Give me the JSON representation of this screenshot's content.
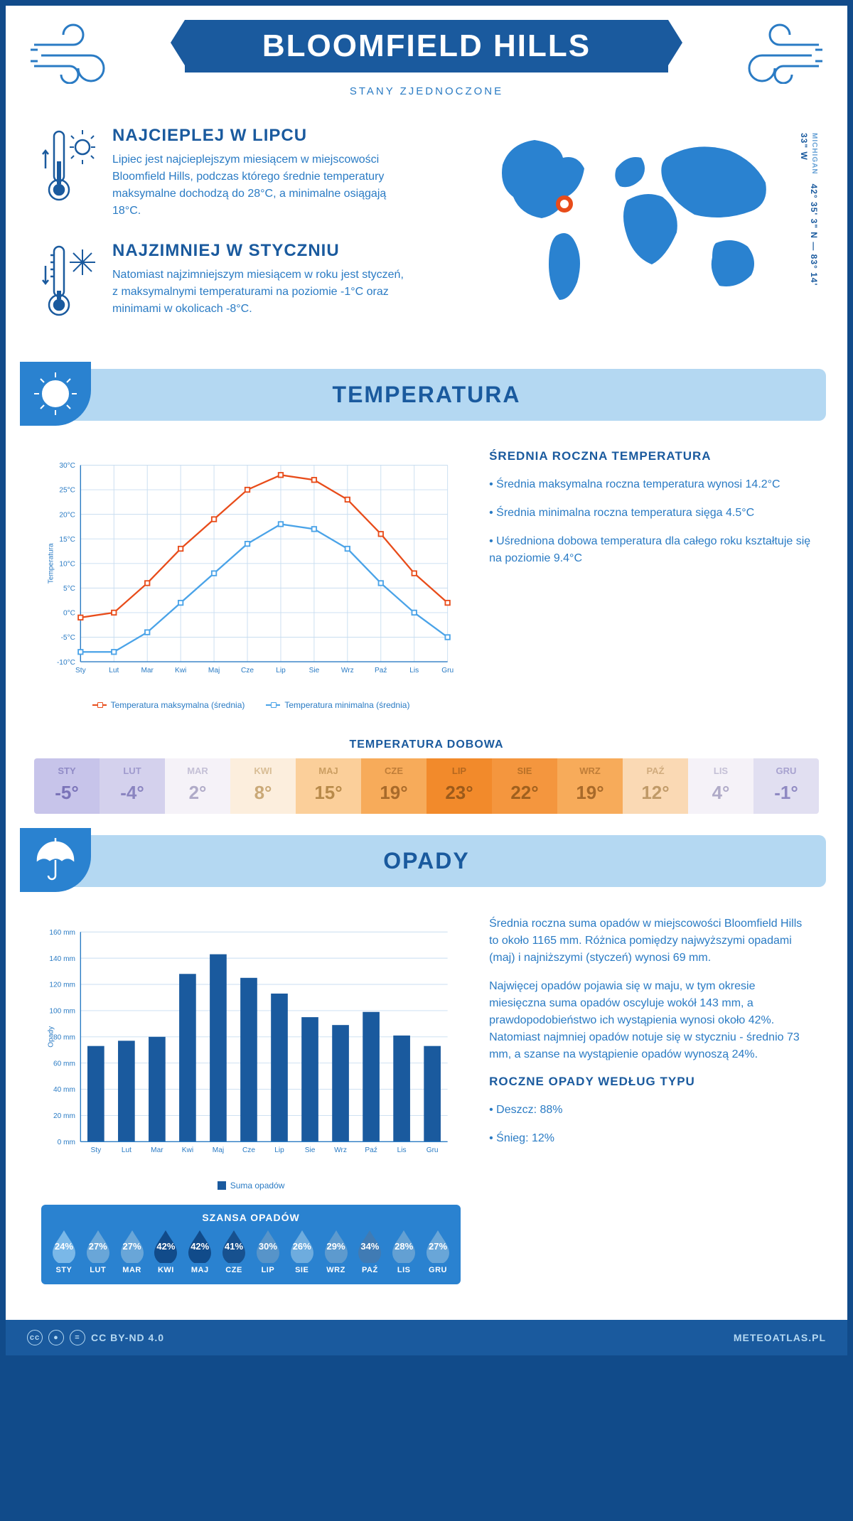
{
  "header": {
    "title": "BLOOMFIELD HILLS",
    "subtitle": "STANY ZJEDNOCZONE"
  },
  "coords": {
    "lat": "42° 35' 3\" N",
    "sep": "—",
    "lon": "83° 14' 33\" W",
    "state": "MICHIGAN"
  },
  "intro": {
    "hot": {
      "heading": "NAJCIEPLEJ W LIPCU",
      "body": "Lipiec jest najcieplejszym miesiącem w miejscowości Bloomfield Hills, podczas którego średnie temperatury maksymalne dochodzą do 28°C, a minimalne osiągają 18°C."
    },
    "cold": {
      "heading": "NAJZIMNIEJ W STYCZNIU",
      "body": "Natomiast najzimniejszym miesiącem w roku jest styczeń, z maksymalnymi temperaturami na poziomie -1°C oraz minimami w okolicach -8°C."
    }
  },
  "sections": {
    "temp": "TEMPERATURA",
    "rain": "OPADY"
  },
  "temp_chart": {
    "ylabel": "Temperatura",
    "months": [
      "Sty",
      "Lut",
      "Mar",
      "Kwi",
      "Maj",
      "Cze",
      "Lip",
      "Sie",
      "Wrz",
      "Paź",
      "Lis",
      "Gru"
    ],
    "max_series": {
      "values": [
        -1,
        0,
        6,
        13,
        19,
        25,
        28,
        27,
        23,
        16,
        8,
        2
      ],
      "color": "#e84c1a",
      "label": "Temperatura maksymalna (średnia)"
    },
    "min_series": {
      "values": [
        -8,
        -8,
        -4,
        2,
        8,
        14,
        18,
        17,
        13,
        6,
        0,
        -5
      ],
      "color": "#4aa3e8",
      "label": "Temperatura minimalna (średnia)"
    },
    "ylim": [
      -10,
      30
    ],
    "ystep": 5,
    "grid_color": "#c8ddf0"
  },
  "temp_side": {
    "heading": "ŚREDNIA ROCZNA TEMPERATURA",
    "bullets": [
      "Średnia maksymalna roczna temperatura wynosi 14.2°C",
      "Średnia minimalna roczna temperatura sięga 4.5°C",
      "Uśredniona dobowa temperatura dla całego roku kształtuje się na poziomie 9.4°C"
    ]
  },
  "daily": {
    "title": "TEMPERATURA DOBOWA",
    "months": [
      "STY",
      "LUT",
      "MAR",
      "KWI",
      "MAJ",
      "CZE",
      "LIP",
      "SIE",
      "WRZ",
      "PAŹ",
      "LIS",
      "GRU"
    ],
    "values": [
      "-5°",
      "-4°",
      "2°",
      "8°",
      "15°",
      "19°",
      "23°",
      "22°",
      "19°",
      "12°",
      "4°",
      "-1°"
    ],
    "bg": [
      "#c7c4ea",
      "#d4d1ed",
      "#f5f2f8",
      "#fceedd",
      "#fbcf9a",
      "#f7ab5a",
      "#f28a2b",
      "#f4963e",
      "#f7ab5a",
      "#fad9b4",
      "#f5f2f8",
      "#e1dff1"
    ],
    "fg": [
      "#7a73b8",
      "#8a84c0",
      "#b0abc8",
      "#caa978",
      "#b88a4a",
      "#a86a2a",
      "#9c5a1a",
      "#a0601e",
      "#a86a2a",
      "#c09a68",
      "#b0abc8",
      "#8f89c2"
    ]
  },
  "rain_chart": {
    "ylabel": "Opady",
    "legend": "Suma opadów",
    "months": [
      "Sty",
      "Lut",
      "Mar",
      "Kwi",
      "Maj",
      "Cze",
      "Lip",
      "Sie",
      "Wrz",
      "Paź",
      "Lis",
      "Gru"
    ],
    "values": [
      73,
      77,
      80,
      128,
      143,
      125,
      113,
      95,
      89,
      99,
      81,
      73
    ],
    "ylim": [
      0,
      160
    ],
    "ystep": 20,
    "bar_color": "#1a5a9e",
    "grid_color": "#c8ddf0"
  },
  "rain_side": {
    "p1": "Średnia roczna suma opadów w miejscowości Bloomfield Hills to około 1165 mm. Różnica pomiędzy najwyższymi opadami (maj) i najniższymi (styczeń) wynosi 69 mm.",
    "p2": "Najwięcej opadów pojawia się w maju, w tym okresie miesięczna suma opadów oscyluje wokół 143 mm, a prawdopodobieństwo ich wystąpienia wynosi około 42%. Natomiast najmniej opadów notuje się w styczniu - średnio 73 mm, a szanse na wystąpienie opadów wynoszą 24%.",
    "type_heading": "ROCZNE OPADY WEDŁUG TYPU",
    "types": [
      "Deszcz: 88%",
      "Śnieg: 12%"
    ]
  },
  "chance": {
    "title": "SZANSA OPADÓW",
    "months": [
      "STY",
      "LUT",
      "MAR",
      "KWI",
      "MAJ",
      "CZE",
      "LIP",
      "SIE",
      "WRZ",
      "PAŹ",
      "LIS",
      "GRU"
    ],
    "values": [
      "24%",
      "27%",
      "27%",
      "42%",
      "42%",
      "41%",
      "30%",
      "26%",
      "29%",
      "34%",
      "28%",
      "27%"
    ],
    "light_color": "#7ab8e8",
    "dark_color": "#114b8a"
  },
  "footer": {
    "license": "CC BY-ND 4.0",
    "site": "METEOATLAS.PL"
  }
}
